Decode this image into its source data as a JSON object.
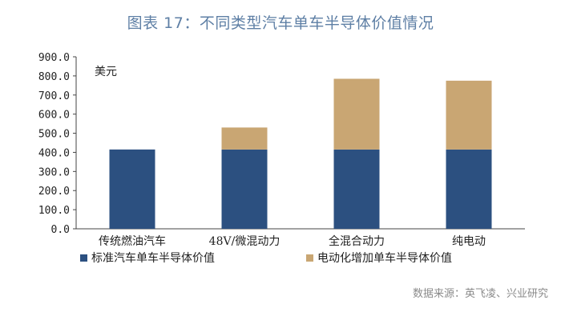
{
  "chart_data": {
    "type": "bar",
    "stacked": true,
    "title": "图表 17：不同类型汽车单车半导体价值情况",
    "ylabel": "美元",
    "ylim": [
      0,
      900
    ],
    "yticks": [
      "0.0",
      "100.0",
      "200.0",
      "300.0",
      "400.0",
      "500.0",
      "600.0",
      "700.0",
      "800.0",
      "900.0"
    ],
    "categories": [
      "传统燃油汽车",
      "48V/微混动力",
      "全混合动力",
      "纯电动"
    ],
    "series": [
      {
        "name": "标准汽车单车半导体价值",
        "color": "#2c5080",
        "values": [
          415,
          415,
          415,
          415
        ]
      },
      {
        "name": "电动化增加单车半导体价值",
        "color": "#c9a673",
        "values": [
          0,
          115,
          370,
          360
        ]
      }
    ],
    "legend_position": "bottom",
    "grid": false
  },
  "source": "数据来源：英飞凌、兴业研究"
}
